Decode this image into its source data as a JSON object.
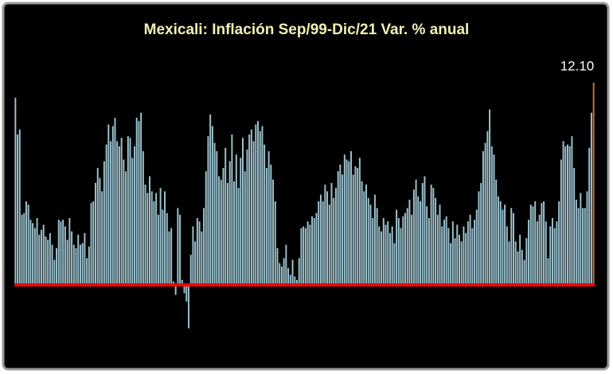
{
  "chart_data": {
    "type": "bar",
    "title": "Mexicali: Inflación Sep/99-Dic/21 Var. % anual",
    "color": "#9cc3cf",
    "last_color": "#c8743a",
    "axis_color": "#ff0000",
    "label_color": "#ffffff",
    "ylim": [
      -3,
      13
    ],
    "categories": [
      null,
      null,
      null,
      null,
      null,
      null,
      null,
      null,
      null,
      null,
      null,
      null,
      null,
      null,
      null,
      null,
      null,
      null,
      null,
      null,
      null,
      null,
      null,
      null,
      null,
      null,
      null,
      null,
      null,
      null,
      null,
      null,
      null,
      null,
      null,
      null,
      null,
      null,
      null,
      null,
      null,
      null,
      null,
      null,
      null,
      null,
      null,
      null,
      null,
      null,
      null,
      null,
      null,
      null,
      null,
      null,
      null,
      null,
      null,
      null,
      null,
      null,
      null,
      null,
      null,
      null,
      null,
      null,
      null,
      null,
      null,
      null,
      null,
      null,
      null,
      null,
      null,
      null,
      null,
      null,
      null,
      null,
      null,
      null,
      null,
      null,
      null,
      null,
      null,
      null,
      null,
      null,
      null,
      null,
      null,
      null,
      null,
      null,
      null,
      null,
      null,
      null,
      null,
      null,
      null,
      null,
      null,
      null,
      null,
      null,
      null,
      null,
      null,
      null,
      null,
      null,
      null,
      null,
      null,
      null,
      null,
      null,
      null,
      null,
      null,
      null,
      null,
      null,
      null,
      null,
      null,
      null,
      null,
      null,
      null,
      null,
      null,
      null,
      null,
      null,
      null,
      null,
      null,
      null,
      null,
      null,
      null,
      null,
      null,
      null,
      null,
      null,
      null,
      null,
      null,
      null,
      null,
      null,
      null,
      null,
      null,
      null,
      null,
      null,
      null,
      null,
      null,
      null,
      null,
      null,
      null,
      null,
      null,
      null,
      null,
      null,
      null,
      null,
      null,
      null,
      null,
      null,
      null,
      null,
      null,
      null,
      null,
      null,
      null,
      null,
      null,
      null,
      null,
      null,
      null,
      null,
      null,
      null,
      null,
      null,
      null,
      null,
      null,
      null,
      null,
      null,
      null,
      null,
      null,
      null,
      null,
      null,
      null,
      null,
      null,
      null,
      null,
      null,
      null,
      null,
      null,
      null,
      null,
      null,
      null,
      null,
      null,
      null,
      null,
      null,
      null,
      null,
      null,
      null,
      null,
      null,
      null,
      null,
      null,
      null,
      null,
      null,
      null,
      null,
      null,
      null,
      null,
      null,
      null,
      null,
      null,
      null,
      null,
      null,
      null,
      null,
      null,
      null,
      null,
      null,
      null,
      null,
      null,
      null,
      null,
      null,
      null,
      null
    ],
    "values": [
      11.2,
      9.0,
      9.3,
      4.2,
      4.3,
      5.0,
      4.8,
      3.9,
      3.7,
      3.4,
      4.0,
      3.0,
      3.3,
      3.6,
      2.9,
      2.7,
      3.1,
      2.4,
      1.5,
      2.2,
      3.9,
      3.8,
      3.9,
      3.5,
      2.7,
      4.0,
      3.2,
      2.4,
      2.2,
      3.0,
      2.4,
      2.5,
      3.1,
      1.6,
      2.3,
      4.9,
      5.0,
      6.1,
      7.0,
      6.4,
      5.6,
      7.4,
      8.4,
      9.6,
      8.6,
      9.5,
      10.0,
      8.6,
      8.3,
      8.8,
      7.5,
      6.8,
      8.9,
      8.8,
      7.6,
      8.3,
      10.0,
      9.8,
      10.3,
      8.0,
      6.0,
      5.5,
      6.5,
      5.6,
      5.0,
      5.5,
      4.2,
      5.8,
      4.5,
      5.6,
      4.3,
      3.2,
      3.4,
      0.2,
      -0.6,
      4.6,
      4.2,
      0.3,
      -0.5,
      -1.0,
      -2.6,
      1.8,
      3.5,
      2.6,
      4.0,
      3.8,
      3.2,
      4.6,
      6.8,
      8.9,
      10.2,
      9.5,
      8.5,
      8.0,
      6.5,
      6.3,
      7.0,
      8.2,
      6.1,
      7.4,
      9.0,
      6.2,
      7.8,
      5.8,
      7.6,
      8.8,
      6.8,
      8.1,
      9.0,
      9.3,
      8.6,
      9.6,
      9.8,
      9.2,
      9.5,
      8.4,
      7.0,
      8.0,
      7.2,
      6.3,
      5.0,
      2.2,
      1.3,
      1.1,
      1.6,
      2.4,
      1.0,
      0.6,
      1.5,
      0.5,
      0.3,
      1.6,
      3.4,
      3.5,
      3.4,
      3.8,
      3.6,
      4.1,
      4.0,
      4.3,
      5.0,
      5.4,
      5.0,
      6.0,
      5.6,
      4.8,
      6.1,
      5.2,
      5.8,
      6.8,
      7.2,
      6.6,
      7.8,
      7.5,
      7.4,
      8.0,
      6.6,
      7.1,
      7.0,
      7.6,
      6.2,
      5.6,
      6.0,
      5.2,
      4.8,
      4.0,
      5.4,
      4.6,
      3.5,
      3.2,
      4.0,
      3.6,
      3.8,
      3.1,
      3.5,
      2.5,
      4.5,
      4.0,
      3.4,
      4.1,
      4.3,
      4.6,
      5.1,
      4.2,
      5.7,
      6.3,
      5.3,
      5.0,
      6.1,
      6.5,
      4.7,
      4.0,
      6.0,
      5.8,
      5.2,
      4.2,
      4.8,
      3.5,
      3.9,
      4.1,
      3.4,
      2.5,
      3.8,
      2.8,
      3.6,
      3.0,
      2.6,
      3.5,
      3.1,
      3.8,
      4.2,
      3.4,
      3.9,
      4.5,
      5.6,
      6.1,
      8.0,
      8.5,
      9.2,
      10.5,
      8.3,
      7.8,
      6.3,
      5.3,
      5.0,
      4.5,
      4.8,
      3.5,
      2.6,
      4.6,
      4.3,
      2.6,
      2.0,
      3.0,
      2.1,
      1.5,
      2.8,
      3.9,
      4.8,
      4.7,
      5.0,
      3.8,
      4.2,
      4.9,
      5.0,
      3.8,
      1.6,
      3.5,
      4.0,
      3.4,
      3.8,
      5.0,
      7.5,
      8.6,
      8.3,
      8.4,
      8.3,
      8.9,
      7.0,
      5.1,
      4.6,
      5.5,
      4.6,
      4.6,
      5.6,
      8.2,
      10.3,
      12.1
    ],
    "value_labels": [
      null,
      null,
      null,
      null,
      null,
      null,
      null,
      null,
      null,
      null,
      null,
      null,
      null,
      null,
      null,
      null,
      null,
      null,
      null,
      null,
      null,
      null,
      null,
      null,
      null,
      null,
      null,
      null,
      null,
      null,
      null,
      null,
      null,
      null,
      null,
      null,
      null,
      null,
      null,
      null,
      null,
      null,
      null,
      null,
      null,
      null,
      null,
      null,
      null,
      null,
      null,
      null,
      null,
      null,
      null,
      null,
      null,
      null,
      null,
      null,
      null,
      null,
      null,
      null,
      null,
      null,
      null,
      null,
      null,
      null,
      null,
      null,
      null,
      null,
      null,
      null,
      null,
      null,
      null,
      null,
      null,
      null,
      null,
      null,
      null,
      null,
      null,
      null,
      null,
      null,
      null,
      null,
      null,
      null,
      null,
      null,
      null,
      null,
      null,
      null,
      null,
      null,
      null,
      null,
      null,
      null,
      null,
      null,
      null,
      null,
      null,
      null,
      null,
      null,
      null,
      null,
      null,
      null,
      null,
      null,
      null,
      null,
      null,
      null,
      null,
      null,
      null,
      null,
      null,
      null,
      null,
      null,
      null,
      null,
      null,
      null,
      null,
      null,
      null,
      null,
      null,
      null,
      null,
      null,
      null,
      null,
      null,
      null,
      null,
      null,
      null,
      null,
      null,
      null,
      null,
      null,
      null,
      null,
      null,
      null,
      null,
      null,
      null,
      null,
      null,
      null,
      null,
      null,
      null,
      null,
      null,
      null,
      null,
      null,
      null,
      null,
      null,
      null,
      null,
      null,
      null,
      null,
      null,
      null,
      null,
      null,
      null,
      null,
      null,
      null,
      null,
      null,
      null,
      null,
      null,
      null,
      null,
      null,
      null,
      null,
      null,
      null,
      null,
      null,
      null,
      null,
      null,
      null,
      null,
      null,
      null,
      null,
      null,
      null,
      null,
      null,
      null,
      null,
      null,
      null,
      null,
      null,
      null,
      null,
      null,
      null,
      null,
      null,
      null,
      null,
      null,
      null,
      null,
      null,
      null,
      null,
      null,
      null,
      null,
      null,
      null,
      null,
      null,
      null,
      null,
      null,
      null,
      null,
      null,
      null,
      null,
      null,
      null,
      null,
      null,
      null,
      null,
      null,
      null,
      null,
      null,
      null,
      null,
      null,
      null,
      null,
      null,
      "12.10"
    ]
  }
}
